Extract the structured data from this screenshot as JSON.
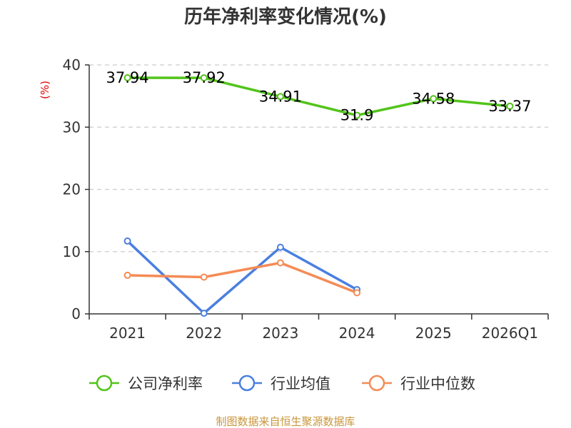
{
  "chart_data": {
    "type": "line",
    "title": "历年净利率变化情况(%)",
    "ylabel": "(%)",
    "xlabel": "",
    "categories": [
      "2021",
      "2022",
      "2023",
      "2024",
      "2025",
      "2026Q1"
    ],
    "ylim": [
      0,
      40
    ],
    "yticks": [
      0,
      10,
      20,
      30,
      40
    ],
    "grid": true,
    "legend_position": "bottom",
    "series": [
      {
        "name": "公司净利率",
        "color": "#52c41a",
        "values": [
          37.94,
          37.92,
          34.91,
          31.9,
          34.58,
          33.37
        ],
        "labels": [
          "37.94",
          "37.92",
          "34.91",
          "31.9",
          "34.58",
          "33.37"
        ]
      },
      {
        "name": "行业均值",
        "color": "#4a7fe0",
        "values": [
          11.7,
          0.1,
          10.7,
          3.9,
          null,
          null
        ]
      },
      {
        "name": "行业中位数",
        "color": "#f58b55",
        "values": [
          6.2,
          5.9,
          8.2,
          3.4,
          null,
          null
        ]
      }
    ],
    "source": "制图数据来自恒生聚源数据库"
  }
}
